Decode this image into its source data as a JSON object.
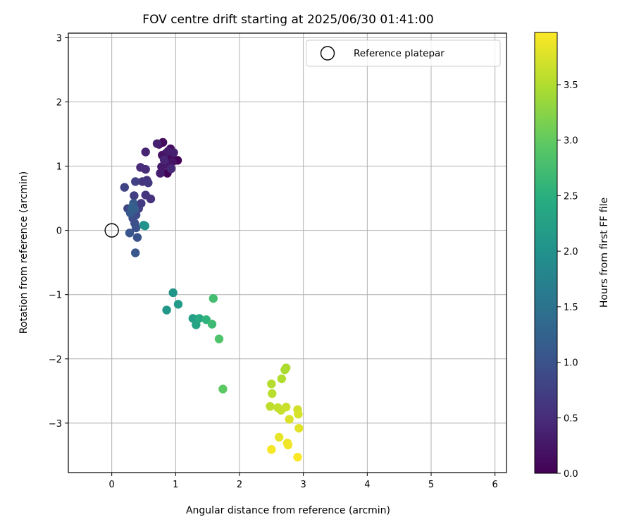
{
  "chart_data": {
    "type": "scatter",
    "title": "FOV centre drift starting at 2025/06/30 01:41:00",
    "xlabel": "Angular distance from reference (arcmin)",
    "ylabel": "Rotation from reference (arcmin)",
    "xlim": [
      -0.68,
      6.18
    ],
    "ylim": [
      -3.77,
      3.07
    ],
    "x_ticks": [
      0,
      1,
      2,
      3,
      4,
      5,
      6
    ],
    "x_tick_labels": [
      "0",
      "1",
      "2",
      "3",
      "4",
      "5",
      "6"
    ],
    "y_ticks": [
      -3,
      -2,
      -1,
      0,
      1,
      2,
      3
    ],
    "y_tick_labels": [
      "−3",
      "−2",
      "−1",
      "0",
      "1",
      "2",
      "3"
    ],
    "grid": true,
    "legend_position": "top-right",
    "legend": [
      {
        "label": "Reference platepar",
        "marker": "open-circle"
      }
    ],
    "reference_point": {
      "x": 0,
      "y": 0,
      "label": "Reference platepar"
    },
    "colorbar": {
      "label": "Hours from first FF file",
      "colormap": "viridis",
      "min": 0.0,
      "max": 3.97,
      "ticks": [
        0.0,
        0.5,
        1.0,
        1.5,
        2.0,
        2.5,
        3.0,
        3.5
      ],
      "tick_labels": [
        "0.0",
        "0.5",
        "1.0",
        "1.5",
        "2.0",
        "2.5",
        "3.0",
        "3.5"
      ]
    },
    "points": [
      {
        "x": 1.03,
        "y": 1.09,
        "c": 0.02
      },
      {
        "x": 0.87,
        "y": 0.89,
        "c": 0.05
      },
      {
        "x": 0.93,
        "y": 1.13,
        "c": 0.07
      },
      {
        "x": 0.74,
        "y": 1.34,
        "c": 0.1
      },
      {
        "x": 0.8,
        "y": 1.37,
        "c": 0.12
      },
      {
        "x": 0.92,
        "y": 1.27,
        "c": 0.15
      },
      {
        "x": 0.85,
        "y": 1.2,
        "c": 0.17
      },
      {
        "x": 0.79,
        "y": 1.17,
        "c": 0.2
      },
      {
        "x": 0.95,
        "y": 1.07,
        "c": 0.22
      },
      {
        "x": 0.9,
        "y": 1.0,
        "c": 0.25
      },
      {
        "x": 0.78,
        "y": 0.99,
        "c": 0.27
      },
      {
        "x": 0.76,
        "y": 0.89,
        "c": 0.3
      },
      {
        "x": 0.88,
        "y": 1.23,
        "c": 0.32
      },
      {
        "x": 0.97,
        "y": 1.21,
        "c": 0.34
      },
      {
        "x": 0.71,
        "y": 1.35,
        "c": 0.37
      },
      {
        "x": 0.53,
        "y": 1.22,
        "c": 0.4
      },
      {
        "x": 0.82,
        "y": 1.1,
        "c": 0.42
      },
      {
        "x": 0.93,
        "y": 0.96,
        "c": 0.45
      },
      {
        "x": 0.45,
        "y": 0.98,
        "c": 0.48
      },
      {
        "x": 0.53,
        "y": 0.95,
        "c": 0.5
      },
      {
        "x": 0.55,
        "y": 0.78,
        "c": 0.53
      },
      {
        "x": 0.61,
        "y": 0.49,
        "c": 0.56
      },
      {
        "x": 0.53,
        "y": 0.55,
        "c": 0.59
      },
      {
        "x": 0.48,
        "y": 0.76,
        "c": 0.62
      },
      {
        "x": 0.57,
        "y": 0.74,
        "c": 0.65
      },
      {
        "x": 0.46,
        "y": 0.42,
        "c": 0.68
      },
      {
        "x": 0.42,
        "y": 0.34,
        "c": 0.71
      },
      {
        "x": 0.35,
        "y": 0.54,
        "c": 0.74
      },
      {
        "x": 0.37,
        "y": 0.76,
        "c": 0.77
      },
      {
        "x": 0.2,
        "y": 0.67,
        "c": 0.8
      },
      {
        "x": 0.25,
        "y": 0.34,
        "c": 0.83
      },
      {
        "x": 0.31,
        "y": 0.3,
        "c": 0.86
      },
      {
        "x": 0.38,
        "y": 0.24,
        "c": 0.89
      },
      {
        "x": 0.33,
        "y": 0.19,
        "c": 0.92
      },
      {
        "x": 0.36,
        "y": 0.11,
        "c": 0.95
      },
      {
        "x": 0.38,
        "y": 0.04,
        "c": 0.98
      },
      {
        "x": 0.4,
        "y": -0.11,
        "c": 1.01
      },
      {
        "x": 0.28,
        "y": -0.04,
        "c": 1.04
      },
      {
        "x": 0.37,
        "y": -0.35,
        "c": 1.07
      },
      {
        "x": 0.34,
        "y": 0.42,
        "c": 1.1
      },
      {
        "x": 0.29,
        "y": 0.27,
        "c": 1.13
      },
      {
        "x": 0.36,
        "y": 0.33,
        "c": 1.16
      },
      {
        "x": 0.32,
        "y": 0.36,
        "c": 1.19
      },
      {
        "x": 0.5,
        "y": 0.08,
        "c": 1.95
      },
      {
        "x": 0.52,
        "y": 0.07,
        "c": 2.0
      },
      {
        "x": 0.96,
        "y": -0.97,
        "c": 2.05
      },
      {
        "x": 0.86,
        "y": -1.24,
        "c": 2.1
      },
      {
        "x": 1.04,
        "y": -1.15,
        "c": 2.15
      },
      {
        "x": 1.27,
        "y": -1.37,
        "c": 2.2
      },
      {
        "x": 1.32,
        "y": -1.47,
        "c": 2.3
      },
      {
        "x": 1.37,
        "y": -1.37,
        "c": 2.4
      },
      {
        "x": 1.48,
        "y": -1.39,
        "c": 2.55
      },
      {
        "x": 1.57,
        "y": -1.46,
        "c": 2.7
      },
      {
        "x": 1.59,
        "y": -1.06,
        "c": 2.75
      },
      {
        "x": 1.68,
        "y": -1.69,
        "c": 2.85
      },
      {
        "x": 1.74,
        "y": -2.47,
        "c": 2.95
      },
      {
        "x": 2.71,
        "y": -2.17,
        "c": 3.45
      },
      {
        "x": 2.73,
        "y": -2.14,
        "c": 3.47
      },
      {
        "x": 2.66,
        "y": -2.31,
        "c": 3.5
      },
      {
        "x": 2.5,
        "y": -2.39,
        "c": 3.52
      },
      {
        "x": 2.51,
        "y": -2.54,
        "c": 3.55
      },
      {
        "x": 2.48,
        "y": -2.74,
        "c": 3.58
      },
      {
        "x": 2.6,
        "y": -2.76,
        "c": 3.6
      },
      {
        "x": 2.65,
        "y": -2.8,
        "c": 3.63
      },
      {
        "x": 2.73,
        "y": -2.75,
        "c": 3.66
      },
      {
        "x": 2.91,
        "y": -2.79,
        "c": 3.7
      },
      {
        "x": 2.92,
        "y": -2.86,
        "c": 3.73
      },
      {
        "x": 2.78,
        "y": -2.94,
        "c": 3.76
      },
      {
        "x": 2.93,
        "y": -3.08,
        "c": 3.8
      },
      {
        "x": 2.62,
        "y": -3.22,
        "c": 3.83
      },
      {
        "x": 2.75,
        "y": -3.31,
        "c": 3.86
      },
      {
        "x": 2.76,
        "y": -3.34,
        "c": 3.89
      },
      {
        "x": 2.5,
        "y": -3.41,
        "c": 3.92
      },
      {
        "x": 2.91,
        "y": -3.53,
        "c": 3.95
      }
    ]
  }
}
